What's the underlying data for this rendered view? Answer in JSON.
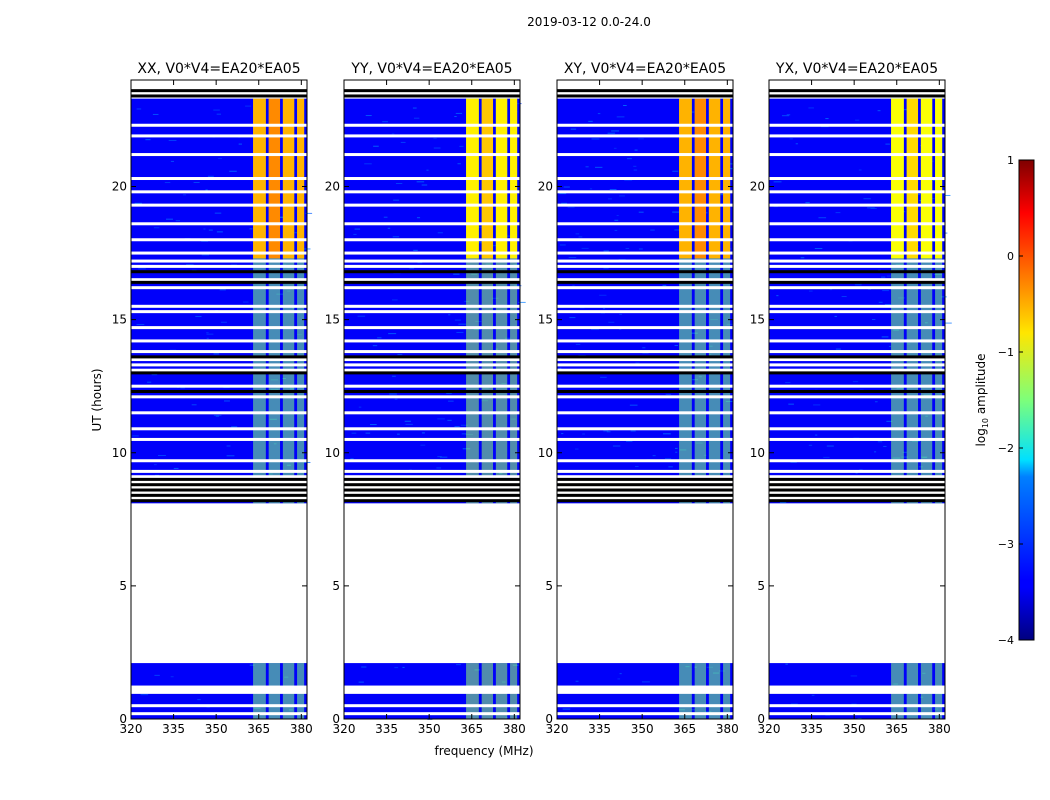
{
  "chart_data": {
    "type": "heatmap",
    "title": "2019-03-12 0.0-24.0",
    "xlabel": "frequency (MHz)",
    "ylabel": "UT (hours)",
    "xlim": [
      320,
      382
    ],
    "ylim": [
      0,
      24
    ],
    "xticks": [
      320,
      335,
      350,
      365,
      380
    ],
    "yticks": [
      0,
      5,
      10,
      15,
      20
    ],
    "colorbar": {
      "label_prefix": "log",
      "label_sub": "10",
      "label_suffix": " amplitude",
      "ticks": [
        1,
        0,
        -1,
        -2,
        -3,
        -4
      ],
      "tick_labels": [
        "1",
        "0",
        "−1",
        "−2",
        "−3",
        "−4"
      ],
      "vmin": -4,
      "vmax": 1,
      "colormap": "jet"
    },
    "panels": [
      {
        "title": "XX, V0*V4=EA20*EA05",
        "band_level": -1.5,
        "peak_level": -0.5
      },
      {
        "title": "YY, V0*V4=EA20*EA05",
        "band_level": -1.4,
        "peak_level": -0.8
      },
      {
        "title": "XY, V0*V4=EA20*EA05",
        "band_level": -1.5,
        "peak_level": -0.5
      },
      {
        "title": "YX, V0*V4=EA20*EA05",
        "band_level": -1.5,
        "peak_level": -0.9
      }
    ],
    "background_level": -3.4,
    "bright_band_mhz": [
      363,
      380
    ],
    "bright_channels_mhz": [
      [
        363,
        367.5
      ],
      [
        368.5,
        372.5
      ],
      [
        373.5,
        377.5
      ],
      [
        378.5,
        381
      ]
    ],
    "strong_interval_hours": [
      17.3,
      23.3
    ],
    "no_data_intervals_hours": [
      [
        2.1,
        8.1
      ]
    ],
    "flagged_rows_hours": [
      0.2,
      0.5,
      1.0,
      1.1,
      1.2,
      8.3,
      8.5,
      8.7,
      8.9,
      9.1,
      9.3,
      9.7,
      10.5,
      10.9,
      11.5,
      12.1,
      12.5,
      13.1,
      13.3,
      13.5,
      13.8,
      14.2,
      14.7,
      15.3,
      15.5,
      16.2,
      16.5,
      17.0,
      17.2,
      17.5,
      18.0,
      18.6,
      19.3,
      19.8,
      20.3,
      21.2,
      21.9,
      22.3
    ],
    "black_rows_hours": [
      8.2,
      8.4,
      8.6,
      8.8,
      9.0,
      12.3,
      13.0,
      13.6,
      16.4,
      16.8,
      23.4,
      23.6
    ]
  }
}
